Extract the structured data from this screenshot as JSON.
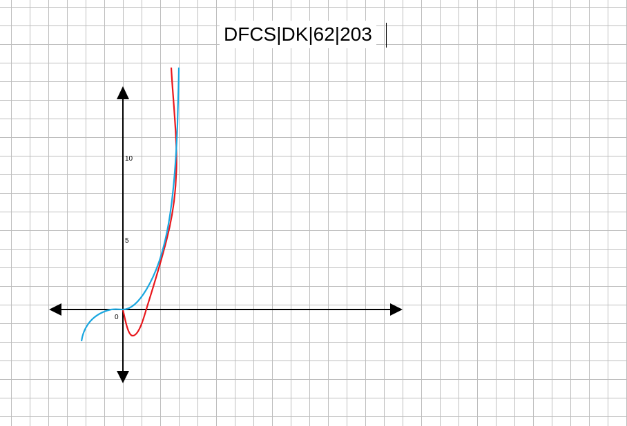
{
  "title": "DFCS|DK|62|203",
  "colors": {
    "axis": "#000000",
    "grid": "#bdbdbd",
    "curve_red": "#e8161b",
    "curve_blue": "#1ba7e0"
  },
  "axis_labels": {
    "origin": "0",
    "y5": "5",
    "y10": "10"
  },
  "chart_data": {
    "type": "line",
    "title": "DFCS|DK|62|203",
    "y_ticks": [
      0,
      5,
      10
    ],
    "series": [
      {
        "color": "#e8161b",
        "x": [
          0,
          0.1,
          0.2,
          0.3,
          0.4,
          0.5,
          0.6,
          0.7,
          0.8,
          0.9,
          1.0,
          1.1
        ],
        "y": [
          0,
          -1.0,
          -1.4,
          -1.0,
          0.1,
          1.4,
          3.0,
          4.8,
          7.0,
          9.5,
          13.5,
          16
        ]
      },
      {
        "color": "#1ba7e0",
        "x": [
          -0.8,
          -0.6,
          -0.4,
          -0.2,
          0,
          0.2,
          0.4,
          0.6,
          0.8,
          1.0,
          1.1
        ],
        "y": [
          -1.9,
          -0.9,
          -0.3,
          -0.05,
          0,
          0.6,
          2.0,
          4.0,
          6.5,
          9.5,
          14.5
        ]
      }
    ]
  }
}
